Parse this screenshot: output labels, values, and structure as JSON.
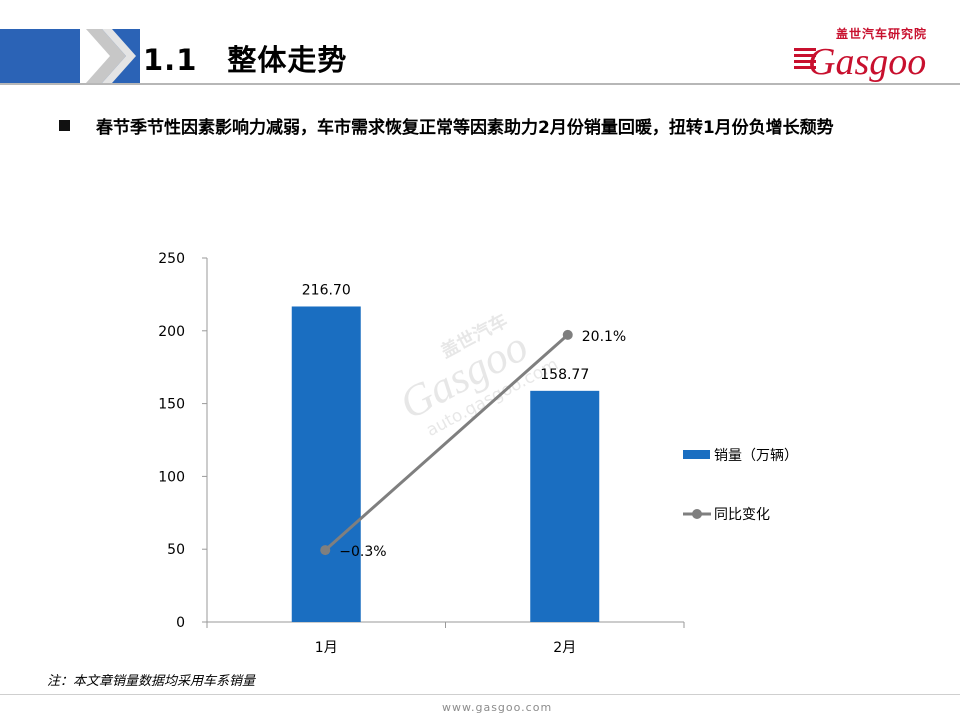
{
  "header": {
    "title": "1.1　整体走势",
    "logo_cn": "盖世汽车研究院",
    "logo_en": "Gasgoo"
  },
  "bullet": {
    "text": "春节季节性因素影响力减弱，车市需求恢复正常等因素助力2月份销量回暖，扭转1月份负增长颓势"
  },
  "chart_data": {
    "type": "bar",
    "categories": [
      "1月",
      "2月"
    ],
    "series": [
      {
        "name": "销量（万辆）",
        "type": "bar",
        "axis": "left",
        "values": [
          216.7,
          158.77
        ],
        "labels": [
          "216.70",
          "158.77"
        ],
        "color": "#1a6ec1"
      },
      {
        "name": "同比变化",
        "type": "line",
        "axis": "secondary",
        "values": [
          -0.3,
          20.1
        ],
        "labels": [
          "−0.3%",
          "20.1%"
        ],
        "color": "#7f7f7f"
      }
    ],
    "ylim": [
      0,
      250
    ],
    "yticks": [
      "0",
      "50",
      "100",
      "150",
      "200",
      "250"
    ],
    "xlabel": "",
    "ylabel": "",
    "legend": "right"
  },
  "watermark": {
    "brand": "Gasgoo",
    "cn": "盖世汽车",
    "url": "auto.gasgoo.com"
  },
  "footnote": "注：本文章销量数据均采用车系销量",
  "footer": {
    "url": "www.gasgoo.com"
  }
}
